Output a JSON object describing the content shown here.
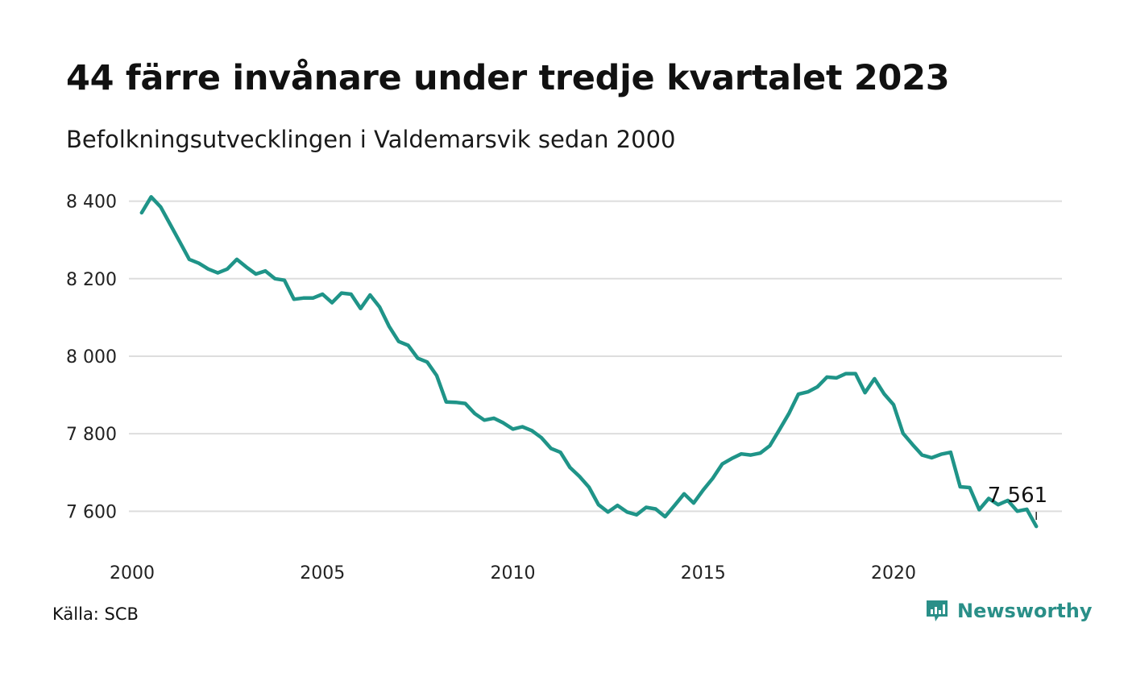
{
  "header": {
    "title": "44 färre invånare under tredje kvartalet 2023",
    "subtitle": "Befolkningsutvecklingen i Valdemarsvik sedan 2000"
  },
  "footer": {
    "source": "Källa: SCB",
    "brand": "Newsworthy",
    "brand_icon": "bar-chart-icon"
  },
  "colors": {
    "line": "#1f9488",
    "grid": "#dddddd",
    "brand": "#2a8f88"
  },
  "chart_data": {
    "type": "line",
    "title": "44 färre invånare under tredje kvartalet 2023",
    "subtitle": "Befolkningsutvecklingen i Valdemarsvik sedan 2000",
    "xlabel": "",
    "ylabel": "",
    "grid": true,
    "xlim": [
      2000,
      2024
    ],
    "ylim": [
      7530,
      8420
    ],
    "x_ticks": [
      2000,
      2005,
      2010,
      2015,
      2020
    ],
    "x_tick_labels": [
      "2000",
      "2005",
      "2010",
      "2015",
      "2020"
    ],
    "y_ticks": [
      7600,
      7800,
      8000,
      8200,
      8400
    ],
    "y_tick_labels": [
      "7 600",
      "7 800",
      "8 000",
      "8 200",
      "8 400"
    ],
    "end_label": "7 561",
    "series": [
      {
        "x": [
          2000.25,
          2000.5,
          2000.75,
          2001.0,
          2001.25,
          2001.5,
          2001.75,
          2002.0,
          2002.25,
          2002.5,
          2002.75,
          2003.0,
          2003.25,
          2003.5,
          2003.75,
          2004.0,
          2004.25,
          2004.5,
          2004.75,
          2005.0,
          2005.25,
          2005.5,
          2005.75,
          2006.0,
          2006.25,
          2006.5,
          2006.75,
          2007.0,
          2007.25,
          2007.5,
          2007.75,
          2008.0,
          2008.25,
          2008.5,
          2008.75,
          2009.0,
          2009.25,
          2009.5,
          2009.75,
          2010.0,
          2010.25,
          2010.5,
          2010.75,
          2011.0,
          2011.25,
          2011.5,
          2011.75,
          2012.0,
          2012.25,
          2012.5,
          2012.75,
          2013.0,
          2013.25,
          2013.5,
          2013.75,
          2014.0,
          2014.25,
          2014.5,
          2014.75,
          2015.0,
          2015.25,
          2015.5,
          2015.75,
          2016.0,
          2016.25,
          2016.5,
          2016.75,
          2017.0,
          2017.25,
          2017.5,
          2017.75,
          2018.0,
          2018.25,
          2018.5,
          2018.75,
          2019.0,
          2019.25,
          2019.5,
          2019.75,
          2020.0,
          2020.25,
          2020.5,
          2020.75,
          2021.0,
          2021.25,
          2021.5,
          2021.75,
          2022.0,
          2022.25,
          2022.5,
          2022.75,
          2023.0,
          2023.25,
          2023.5,
          2023.75
        ],
        "values": [
          8370,
          8411,
          8385,
          8340,
          8295,
          8250,
          8240,
          8225,
          8215,
          8225,
          8250,
          8230,
          8212,
          8220,
          8200,
          8196,
          8147,
          8150,
          8150,
          8160,
          8138,
          8163,
          8160,
          8123,
          8158,
          8127,
          8077,
          8038,
          8028,
          7995,
          7985,
          7950,
          7882,
          7881,
          7878,
          7852,
          7835,
          7840,
          7828,
          7812,
          7818,
          7808,
          7790,
          7762,
          7752,
          7713,
          7690,
          7662,
          7617,
          7598,
          7615,
          7598,
          7591,
          7610,
          7606,
          7586,
          7615,
          7645,
          7621,
          7655,
          7685,
          7722,
          7736,
          7748,
          7745,
          7750,
          7769,
          7810,
          7852,
          7902,
          7908,
          7921,
          7946,
          7944,
          7955,
          7955,
          7906,
          7942,
          7903,
          7875,
          7801,
          7772,
          7745,
          7738,
          7747,
          7752,
          7663,
          7661,
          7604,
          7633,
          7617,
          7628,
          7600,
          7605,
          7561
        ]
      }
    ]
  }
}
